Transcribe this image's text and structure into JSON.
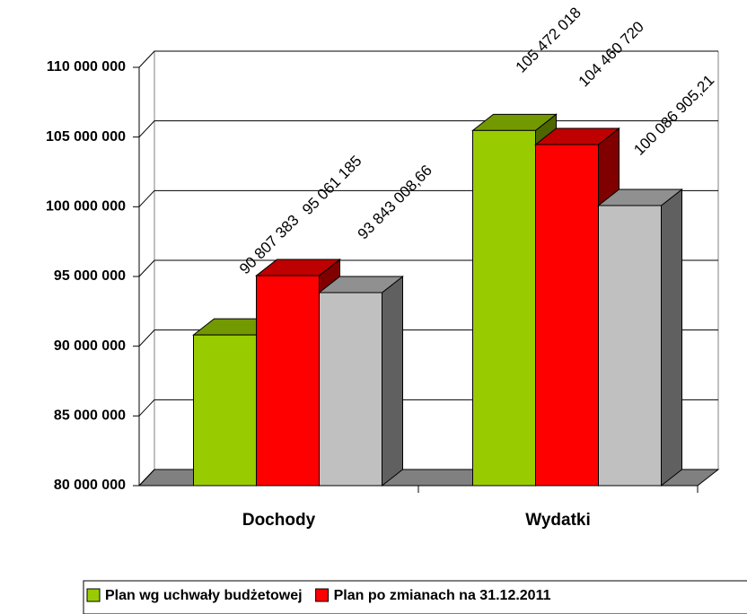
{
  "chart_data": {
    "type": "bar3d",
    "categories": [
      "Dochody",
      "Wydatki"
    ],
    "series": [
      {
        "name": "Plan wg uchwały budżetowej",
        "color": "#99cc00",
        "values": [
          90807383,
          105472018
        ],
        "value_labels": [
          "90 807 383",
          "105 472 018"
        ]
      },
      {
        "name": "Plan po zmianach na 31.12.2011",
        "color": "#ff0000",
        "values": [
          95061185,
          104460720
        ],
        "value_labels": [
          "95 061 185",
          "104 460 720"
        ]
      },
      {
        "color": "#c0c0c0",
        "values": [
          93843008.66,
          100086905.21
        ],
        "value_labels": [
          "93 843 008,66",
          "100 086 905,21"
        ]
      }
    ],
    "ylim": [
      80000000,
      110000000
    ],
    "yticks": [
      {
        "value": 80000000,
        "label": "80 000 000"
      },
      {
        "value": 85000000,
        "label": "85 000 000"
      },
      {
        "value": 90000000,
        "label": "90 000 000"
      },
      {
        "value": 95000000,
        "label": "95 000 000"
      },
      {
        "value": 100000000,
        "label": "100 000 000"
      },
      {
        "value": 105000000,
        "label": "105 000 000"
      },
      {
        "value": 110000000,
        "label": "110 000 000"
      }
    ],
    "grid": true
  }
}
